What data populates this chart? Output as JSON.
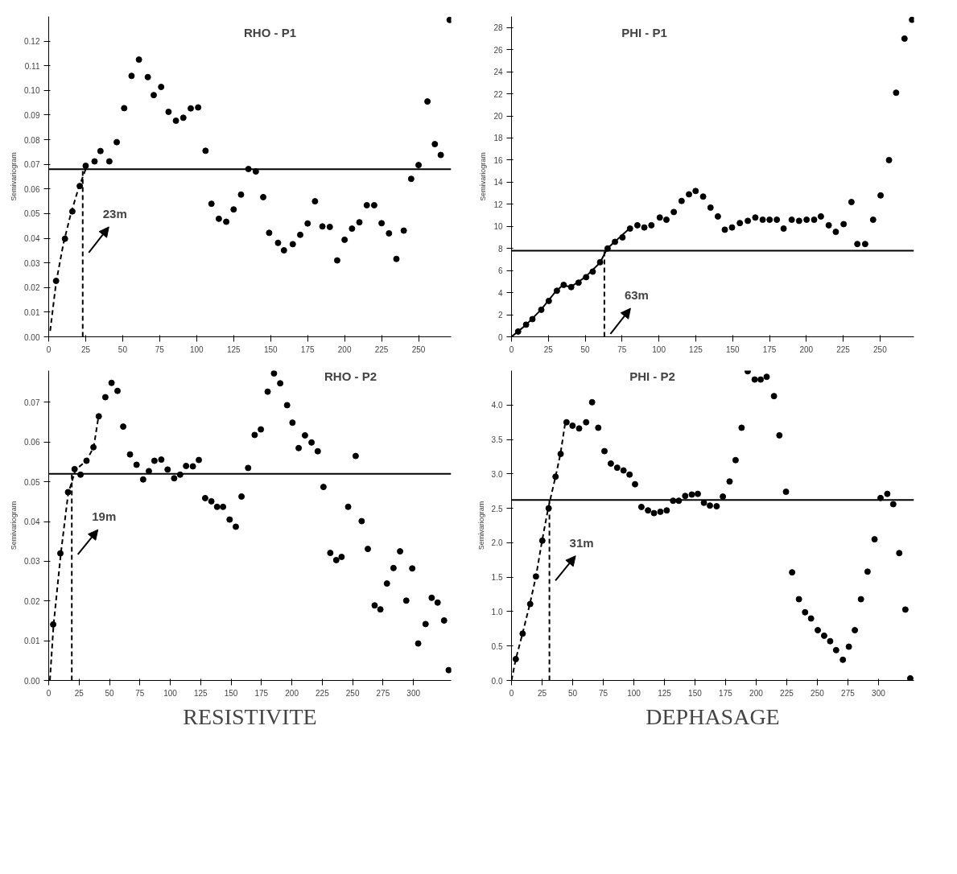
{
  "chart_data": [
    {
      "type": "scatter",
      "title": "RHO - P1",
      "ylabel": "Semivariogram",
      "xlim": [
        0,
        272
      ],
      "ylim": [
        0,
        0.13
      ],
      "xticks": [
        0,
        25,
        50,
        75,
        100,
        125,
        150,
        175,
        200,
        225,
        250
      ],
      "yticks": [
        {
          "value": 0,
          "label": "0.00"
        },
        {
          "value": 0.01,
          "label": "0.01"
        },
        {
          "value": 0.02,
          "label": "0.02"
        },
        {
          "value": 0.03,
          "label": "0.03"
        },
        {
          "value": 0.04,
          "label": "0.04"
        },
        {
          "value": 0.05,
          "label": "0.05"
        },
        {
          "value": 0.06,
          "label": "0.06"
        },
        {
          "value": 0.07,
          "label": "0.07"
        },
        {
          "value": 0.08,
          "label": "0.08"
        },
        {
          "value": 0.09,
          "label": "0.09"
        },
        {
          "value": 0.1,
          "label": "0.10"
        },
        {
          "value": 0.11,
          "label": "0.11"
        },
        {
          "value": 0.12,
          "label": "0.12"
        }
      ],
      "series": [
        {
          "marker": "circle",
          "color": "#000000",
          "x": [
            5,
            11,
            16,
            21,
            25,
            31,
            35,
            41,
            46,
            51,
            56,
            61,
            67,
            71,
            76,
            81,
            86,
            91,
            96,
            101,
            106,
            110,
            115,
            120,
            125,
            130,
            135,
            140,
            145,
            149,
            155,
            159,
            165,
            170,
            175,
            180,
            185,
            190,
            195,
            200,
            205,
            210,
            215,
            220,
            225,
            230,
            235,
            240,
            245,
            250,
            256,
            261,
            265,
            271
          ],
          "values": [
            0.0227,
            0.0398,
            0.0509,
            0.0612,
            0.0694,
            0.0712,
            0.0754,
            0.0712,
            0.079,
            0.0928,
            0.1059,
            0.1125,
            0.1054,
            0.0981,
            0.1014,
            0.0913,
            0.0877,
            0.0889,
            0.0927,
            0.0931,
            0.0755,
            0.054,
            0.0479,
            0.0467,
            0.0517,
            0.0577,
            0.0681,
            0.0671,
            0.0567,
            0.0422,
            0.0381,
            0.0351,
            0.0376,
            0.0414,
            0.046,
            0.055,
            0.0448,
            0.0446,
            0.031,
            0.0394,
            0.0439,
            0.0465,
            0.0534,
            0.0534,
            0.0461,
            0.042,
            0.0316,
            0.0431,
            0.0641,
            0.0697,
            0.0955,
            0.0782,
            0.0738,
            0.1286
          ]
        },
        {
          "type": "line",
          "color": "#000000",
          "line_style": "dashed",
          "x": [
            1,
            5,
            10,
            15,
            20,
            25
          ],
          "values": [
            0.0024,
            0.022,
            0.038,
            0.05,
            0.06,
            0.068
          ]
        }
      ],
      "ref_lines": [
        {
          "axis": "y",
          "value": 0.068
        },
        {
          "axis": "x",
          "value": 23,
          "label": "23m",
          "line_style": "dashed"
        }
      ]
    },
    {
      "type": "scatter",
      "title": "PHI - P1",
      "ylabel": "Semivariogram",
      "xlim": [
        0,
        273
      ],
      "ylim": [
        0,
        29
      ],
      "xticks": [
        0,
        25,
        50,
        75,
        100,
        125,
        150,
        175,
        200,
        225,
        250
      ],
      "yticks": [
        0,
        2,
        4,
        6,
        8,
        10,
        12,
        14,
        16,
        18,
        20,
        22,
        24,
        26,
        28
      ],
      "series": [
        {
          "marker": "circle",
          "color": "#000000",
          "x": [
            4.5,
            9.9,
            14.2,
            20.2,
            25.3,
            30.8,
            35.4,
            40.5,
            45.5,
            50.6,
            55.1,
            60.1,
            65.2,
            70.2,
            75.3,
            80.4,
            85.4,
            90.1,
            94.9,
            100.6,
            105.1,
            110.1,
            115.4,
            120.4,
            124.9,
            130,
            135,
            140,
            144.7,
            149.6,
            154.9,
            160.3,
            165.4,
            170.4,
            175.1,
            180,
            184.6,
            190.1,
            195.1,
            200.2,
            205.3,
            209.9,
            215.2,
            220,
            225.3,
            230.6,
            234.6,
            239.9,
            245.3,
            250.4,
            256.1,
            260.9,
            266.6,
            271.7
          ],
          "values": [
            0.48,
            1.1,
            1.6,
            2.45,
            3.25,
            4.17,
            4.7,
            4.5,
            4.9,
            5.4,
            5.9,
            6.75,
            8.0,
            8.6,
            9.0,
            9.8,
            10.1,
            9.9,
            10.1,
            10.8,
            10.6,
            11.3,
            12.3,
            12.9,
            13.2,
            12.7,
            11.7,
            10.9,
            9.7,
            9.9,
            10.3,
            10.5,
            10.8,
            10.6,
            10.6,
            10.6,
            9.8,
            10.6,
            10.5,
            10.6,
            10.6,
            10.9,
            10.1,
            9.5,
            10.2,
            12.2,
            8.4,
            8.4,
            10.6,
            12.8,
            16.0,
            22.1,
            27.0,
            28.7
          ]
        },
        {
          "type": "line",
          "color": "#000000",
          "line_style": "solid",
          "x": [
            0,
            10,
            20,
            30,
            35,
            40,
            50,
            60,
            65,
            80
          ],
          "values": [
            0,
            1.1,
            2.45,
            4.1,
            4.7,
            4.5,
            5.4,
            6.7,
            8.0,
            9.8
          ]
        }
      ],
      "ref_lines": [
        {
          "axis": "y",
          "value": 7.8
        },
        {
          "axis": "x",
          "value": 63,
          "label": "63m",
          "line_style": "dashed"
        }
      ]
    },
    {
      "type": "scatter",
      "title": "RHO - P2",
      "ylabel": "Semivariogram",
      "xlim": [
        0,
        331
      ],
      "ylim": [
        0,
        0.078
      ],
      "xticks": [
        0,
        25,
        50,
        75,
        100,
        125,
        150,
        175,
        200,
        225,
        250,
        275,
        300
      ],
      "yticks": [
        {
          "value": 0,
          "label": "0.00"
        },
        {
          "value": 0.01,
          "label": "0.01"
        },
        {
          "value": 0.02,
          "label": "0.02"
        },
        {
          "value": 0.03,
          "label": "0.03"
        },
        {
          "value": 0.04,
          "label": "0.04"
        },
        {
          "value": 0.05,
          "label": "0.05"
        },
        {
          "value": 0.06,
          "label": "0.06"
        },
        {
          "value": 0.07,
          "label": "0.07"
        }
      ],
      "series": [
        {
          "marker": "circle",
          "color": "#000000",
          "x": [
            3.7,
            9.6,
            15.9,
            21.3,
            26.2,
            31.1,
            36.8,
            41.2,
            46.6,
            51.7,
            56.6,
            61.3,
            66.9,
            72.3,
            77.7,
            82.4,
            87,
            92.6,
            97.8,
            103.2,
            108.1,
            113,
            118.6,
            123.5,
            128.7,
            133.8,
            138.5,
            143.4,
            148.8,
            153.9,
            158.6,
            164,
            169.4,
            174.5,
            180.1,
            185.3,
            190.4,
            196.1,
            200.5,
            205.6,
            210.8,
            216.2,
            221.3,
            226,
            231.6,
            236.5,
            240.9,
            246.3,
            252.5,
            257.4,
            262.5,
            268.1,
            272.8,
            278.2,
            283.6,
            289,
            294.1,
            299,
            303.9,
            310,
            315,
            319.9,
            325.2,
            329
          ],
          "values": [
            0.0141,
            0.032,
            0.0474,
            0.0532,
            0.0518,
            0.0553,
            0.0587,
            0.0665,
            0.0713,
            0.0749,
            0.0729,
            0.0639,
            0.0569,
            0.0543,
            0.0506,
            0.0527,
            0.0553,
            0.0556,
            0.0531,
            0.0509,
            0.0518,
            0.054,
            0.0539,
            0.0555,
            0.0459,
            0.0451,
            0.0437,
            0.0437,
            0.0405,
            0.0387,
            0.0463,
            0.0535,
            0.0618,
            0.0632,
            0.0727,
            0.0773,
            0.0748,
            0.0693,
            0.0649,
            0.0585,
            0.0617,
            0.0599,
            0.0577,
            0.0487,
            0.0321,
            0.0303,
            0.0311,
            0.0437,
            0.0565,
            0.0401,
            0.0331,
            0.0189,
            0.0179,
            0.0244,
            0.0283,
            0.0325,
            0.0201,
            0.0282,
            0.0093,
            0.0142,
            0.0208,
            0.0196,
            0.0151,
            0.0026
          ]
        },
        {
          "type": "line",
          "color": "#000000",
          "line_style": "dashed",
          "x": [
            1,
            4,
            10,
            16,
            22,
            31,
            37,
            41
          ],
          "values": [
            0.0,
            0.014,
            0.032,
            0.047,
            0.053,
            0.0553,
            0.0587,
            0.0665
          ]
        }
      ],
      "ref_lines": [
        {
          "axis": "y",
          "value": 0.052
        },
        {
          "axis": "x",
          "value": 19,
          "label": "19m",
          "line_style": "dashed"
        }
      ],
      "annotations": [
        "RESISTIVITE"
      ]
    },
    {
      "type": "scatter",
      "title": "PHI - P2",
      "ylabel": "Semivariogram",
      "xlim": [
        0,
        329
      ],
      "ylim": [
        0,
        4.5
      ],
      "xticks": [
        0,
        25,
        50,
        75,
        100,
        125,
        150,
        175,
        200,
        225,
        250,
        275,
        300
      ],
      "yticks": [
        {
          "value": 0,
          "label": "0.0"
        },
        {
          "value": 0.5,
          "label": "0.5"
        },
        {
          "value": 1,
          "label": "1.0"
        },
        {
          "value": 1.5,
          "label": "1.5"
        },
        {
          "value": 2,
          "label": "2.0"
        },
        {
          "value": 2.5,
          "label": "2.5"
        },
        {
          "value": 3,
          "label": "3.0"
        },
        {
          "value": 3.5,
          "label": "3.5"
        },
        {
          "value": 4,
          "label": "4.0"
        }
      ],
      "series": [
        {
          "marker": "circle",
          "color": "#000000",
          "x": [
            3.5,
            9.1,
            15.3,
            20,
            25.2,
            30.4,
            36,
            40.2,
            45,
            49.9,
            55.3,
            61,
            65.9,
            70.9,
            76,
            81.2,
            86.4,
            91.6,
            96.5,
            101,
            106.2,
            111.6,
            116.5,
            121.7,
            126.9,
            132.1,
            136.8,
            142,
            147.4,
            152.3,
            157.3,
            162.2,
            167.7,
            172.8,
            178.3,
            183.2,
            188.1,
            193.1,
            198.8,
            203.7,
            208.6,
            214.6,
            219,
            224.4,
            229.4,
            235,
            240,
            244.9,
            250.4,
            255.6,
            260.5,
            265.4,
            270.9,
            275.8,
            280.7,
            285.7,
            291.1,
            296.8,
            301.7,
            307.2,
            312.1,
            317,
            322,
            326
          ],
          "values": [
            0.31,
            0.68,
            1.11,
            1.51,
            2.03,
            2.5,
            2.96,
            3.29,
            3.75,
            3.7,
            3.66,
            3.75,
            4.04,
            3.67,
            3.33,
            3.15,
            3.09,
            3.05,
            2.99,
            2.85,
            2.52,
            2.47,
            2.43,
            2.45,
            2.47,
            2.61,
            2.61,
            2.68,
            2.7,
            2.71,
            2.58,
            2.54,
            2.53,
            2.67,
            2.89,
            3.2,
            3.67,
            4.49,
            4.37,
            4.37,
            4.41,
            4.13,
            3.56,
            2.74,
            1.57,
            1.18,
            0.99,
            0.9,
            0.73,
            0.65,
            0.57,
            0.44,
            0.3,
            0.49,
            0.73,
            1.18,
            1.58,
            2.05,
            2.65,
            2.71,
            2.56,
            1.85,
            1.03,
            0.03
          ]
        },
        {
          "type": "line",
          "color": "#000000",
          "line_style": "dashed",
          "x": [
            0,
            3.5,
            9,
            15,
            20,
            25,
            30,
            36,
            40,
            44
          ],
          "values": [
            0,
            0.31,
            0.68,
            1.11,
            1.51,
            2.03,
            2.5,
            2.96,
            3.29,
            3.75
          ]
        }
      ],
      "ref_lines": [
        {
          "axis": "y",
          "value": 2.62
        },
        {
          "axis": "x",
          "value": 31,
          "label": "31m",
          "line_style": "dashed"
        }
      ],
      "annotations": [
        "DEPHASAGE"
      ]
    }
  ]
}
